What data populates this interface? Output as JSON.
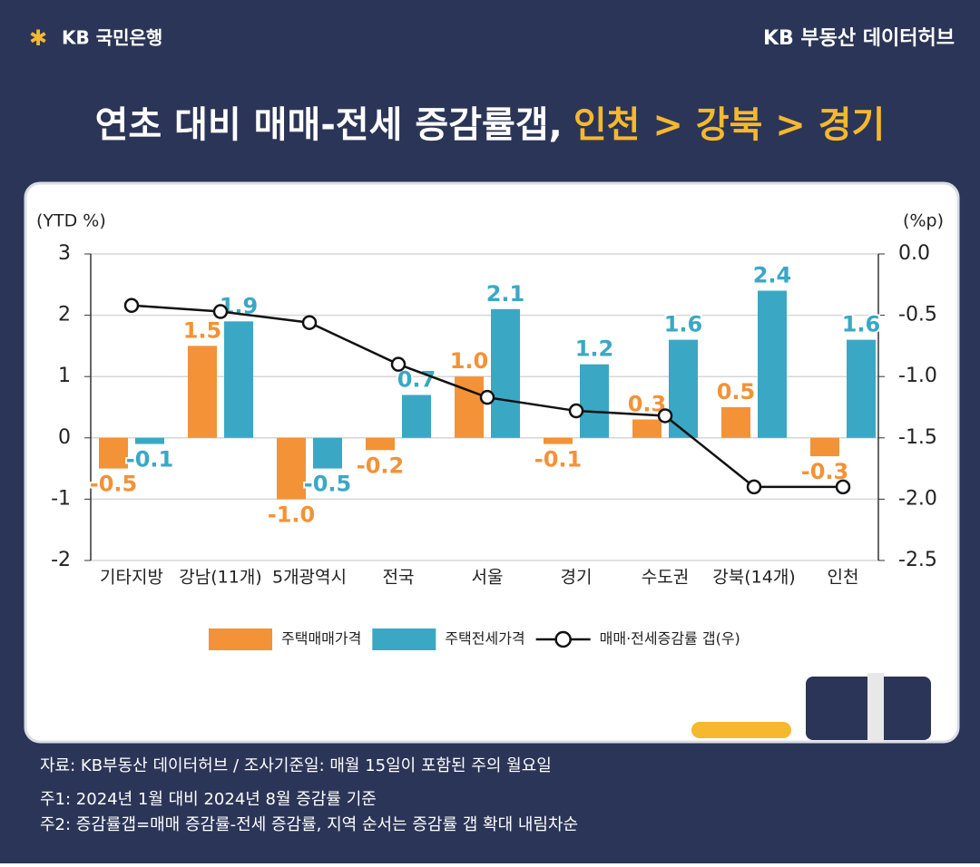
{
  "brand": "KB 국민은행",
  "hub": "KB 부동산 데이터허브",
  "title_main": "연초 대비 매매-전세 증감률갭,",
  "title_highlight": "인천 > 강북 > 경기",
  "chart_data": {
    "type": "bar-line",
    "y_label": "(YTD %)",
    "y2_label": "(%p)",
    "categories": [
      "기타지방",
      "강남(11개)",
      "5개광역시",
      "전국",
      "서울",
      "경기",
      "수도권",
      "강북(14개)",
      "인천"
    ],
    "series": [
      {
        "name": "주택매매가격",
        "color": "#f39237",
        "values": [
          -0.5,
          1.5,
          -1.0,
          -0.2,
          1.0,
          -0.1,
          0.3,
          0.5,
          -0.3
        ],
        "value_labels": [
          "-0.5",
          "1.5",
          "-1.0",
          "-0.2",
          "1.0",
          "-0.1",
          "0.3",
          "0.5",
          "-0.3"
        ]
      },
      {
        "name": "주택전세가격",
        "color": "#3aa8c4",
        "values": [
          -0.1,
          1.9,
          -0.5,
          0.7,
          2.1,
          1.2,
          1.6,
          2.4,
          1.6
        ],
        "value_labels": [
          "-0.1",
          "1.9",
          "-0.5",
          "0.7",
          "2.1",
          "1.2",
          "1.6",
          "2.4",
          "1.6"
        ]
      },
      {
        "name": "매매·전세증감률 갭(우)",
        "color": "#111111",
        "axis": "y2",
        "values": [
          -0.42,
          -0.47,
          -0.56,
          -0.9,
          -1.17,
          -1.28,
          -1.32,
          -1.9,
          -1.9
        ]
      }
    ],
    "ylim": [
      -2,
      3
    ],
    "yticks": [
      -2,
      -1,
      0,
      1,
      2,
      3
    ],
    "y2lim": [
      -2.5,
      0
    ],
    "y2ticks": [
      {
        "value": -2.5,
        "label": "-2.5"
      },
      {
        "value": -2,
        "label": "-2.0"
      },
      {
        "value": -1.5,
        "label": "-1.5"
      },
      {
        "value": -1,
        "label": "-1.0"
      },
      {
        "value": -0.5,
        "label": "-0.5"
      },
      {
        "value": 0,
        "label": "0.0"
      }
    ],
    "grid": true
  },
  "notes": [
    "자료: KB부동산 데이터허브 / 조사기준일: 매월 15일이 포함된 주의 월요일",
    "주1: 2024년 1월 대비 2024년 8월 증감률 기준",
    "주2: 증감률갭=매매 증감률-전세 증감률, 지역 순서는 증감률 갭 확대 내림차순"
  ]
}
